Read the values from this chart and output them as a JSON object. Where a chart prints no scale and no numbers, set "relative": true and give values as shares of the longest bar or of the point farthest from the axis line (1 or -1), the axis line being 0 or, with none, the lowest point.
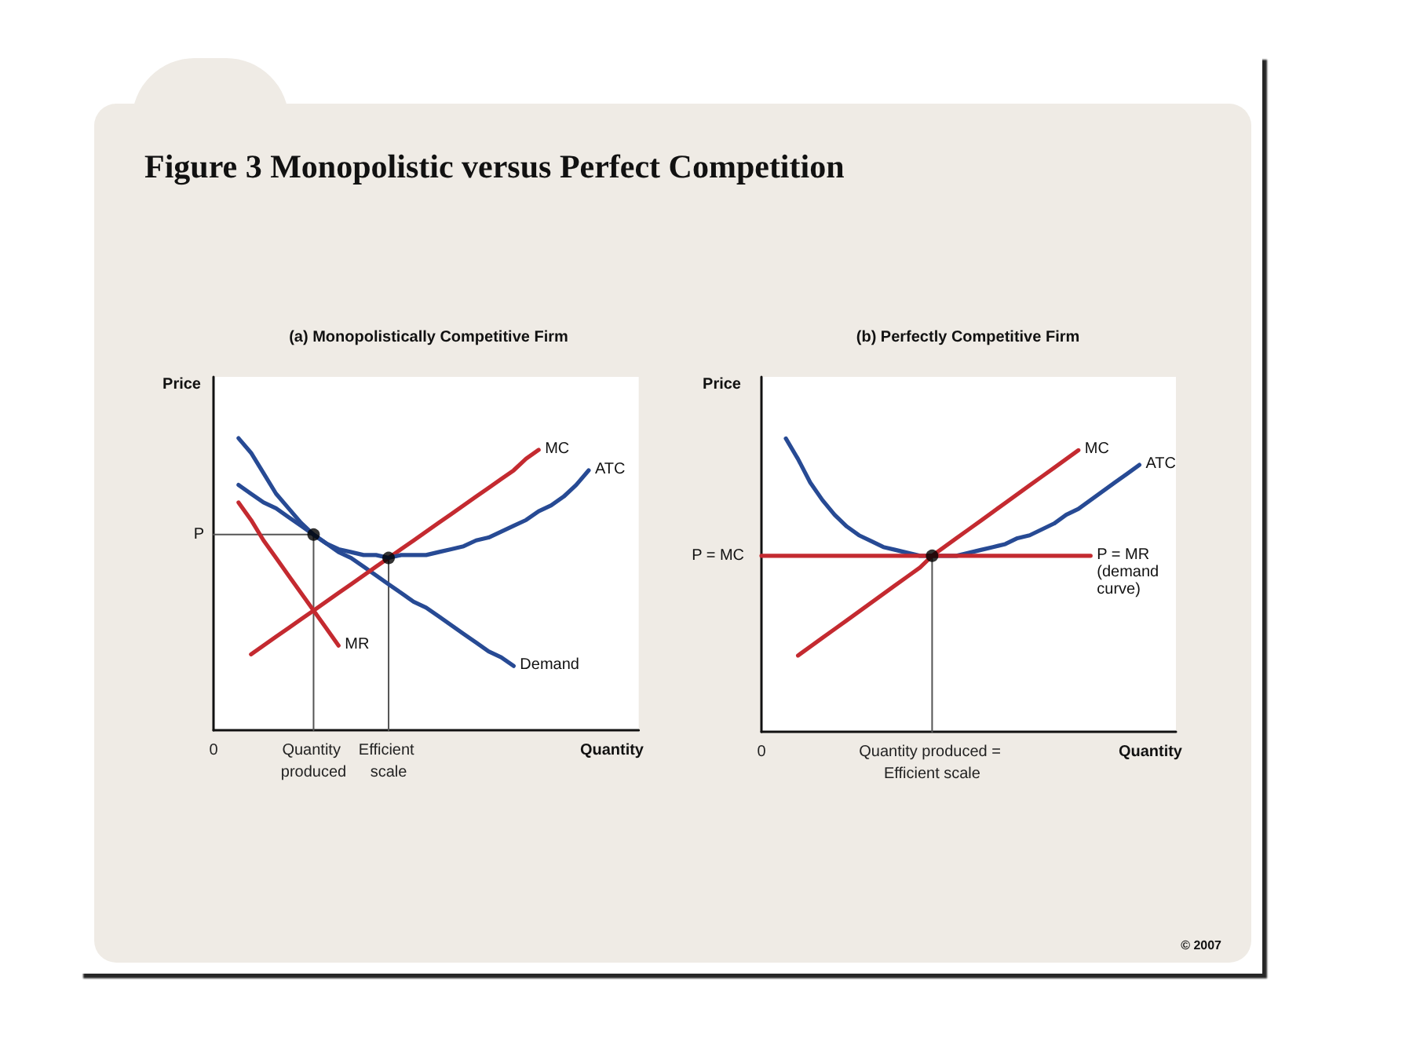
{
  "chart_data": [
    {
      "type": "line",
      "title": "Figure 3 Monopolistic versus Perfect Competition",
      "subtitle": "(a) Monopolistically Competitive Firm",
      "xlabel": "Quantity",
      "ylabel": "Price",
      "relative": true,
      "categories": [
        "0",
        null,
        null,
        null,
        null,
        null,
        null,
        null,
        "Quantity produced",
        null,
        null,
        null,
        null,
        null,
        "Efficient scale",
        null,
        null,
        null,
        null,
        null,
        null,
        null,
        null,
        null,
        null,
        null,
        null,
        null,
        null,
        null,
        null,
        null,
        null,
        null,
        null
      ],
      "series": [
        {
          "name": "Demand",
          "color": "#274a94",
          "values": [
            null,
            null,
            0.84,
            0.81,
            0.78,
            0.76,
            0.73,
            0.7,
            0.67,
            0.64,
            0.61,
            0.59,
            0.56,
            0.53,
            0.5,
            0.47,
            0.44,
            0.42,
            0.39,
            0.36,
            0.33,
            0.3,
            0.27,
            0.25,
            0.22,
            null,
            null,
            null,
            null,
            null,
            null,
            null,
            null,
            null,
            null
          ]
        },
        {
          "name": "MR",
          "color": "#c42a30",
          "values": [
            null,
            null,
            0.78,
            0.72,
            0.65,
            0.59,
            0.53,
            0.47,
            0.41,
            0.35,
            0.29,
            null,
            null,
            null,
            null,
            null,
            null,
            null,
            null,
            null,
            null,
            null,
            null,
            null,
            null,
            null,
            null,
            null,
            null,
            null,
            null,
            null,
            null,
            null,
            null
          ]
        },
        {
          "name": "MC",
          "color": "#c42a30",
          "values": [
            null,
            null,
            null,
            0.26,
            0.29,
            0.32,
            0.35,
            0.38,
            0.41,
            0.44,
            0.47,
            0.5,
            0.53,
            0.56,
            0.59,
            0.62,
            0.65,
            0.68,
            0.71,
            0.74,
            0.77,
            0.8,
            0.83,
            0.86,
            0.89,
            0.93,
            0.96,
            null,
            null,
            null,
            null,
            null,
            null,
            null,
            null
          ]
        },
        {
          "name": "ATC",
          "color": "#274a94",
          "values": [
            null,
            null,
            1.0,
            0.95,
            0.88,
            0.81,
            0.76,
            0.71,
            0.67,
            0.64,
            0.62,
            0.61,
            0.6,
            0.6,
            0.59,
            0.6,
            0.6,
            0.6,
            0.61,
            0.62,
            0.63,
            0.65,
            0.66,
            0.68,
            0.7,
            0.72,
            0.75,
            0.77,
            0.8,
            0.84,
            0.89,
            null,
            null,
            null,
            null
          ]
        },
        {
          "color": "#555555",
          "x": [
            "0",
            "Quantity produced",
            "Quantity produced"
          ],
          "values": [
            0.67,
            0.67,
            0
          ]
        },
        {
          "color": "#555555",
          "x": [
            "Efficient scale",
            "Efficient scale"
          ],
          "values": [
            0.59,
            0
          ]
        },
        {
          "type": "scatter",
          "marker": "circle",
          "color": "#000000",
          "x": [
            "Quantity produced",
            "Efficient scale"
          ],
          "values": [
            0.67,
            0.59
          ]
        }
      ],
      "annotations": [
        {
          "text": "P",
          "x": "0",
          "y": 0.67
        }
      ]
    },
    {
      "type": "line",
      "subtitle": "(b) Perfectly Competitive Firm",
      "xlabel": "Quantity",
      "ylabel": "Price",
      "relative": true,
      "categories": [
        "0",
        null,
        null,
        null,
        null,
        null,
        null,
        null,
        null,
        null,
        null,
        null,
        null,
        null,
        "Quantity produced = Efficient scale",
        null,
        null,
        null,
        null,
        null,
        null,
        null,
        null,
        null,
        null,
        null,
        null,
        null,
        null,
        null,
        null,
        null,
        null,
        null,
        null
      ],
      "series": [
        {
          "name": "MC",
          "color": "#c42a30",
          "values": [
            null,
            null,
            null,
            0.26,
            0.29,
            0.32,
            0.35,
            0.38,
            0.41,
            0.44,
            0.47,
            0.5,
            0.53,
            0.56,
            0.6,
            0.63,
            0.66,
            0.69,
            0.72,
            0.75,
            0.78,
            0.81,
            0.84,
            0.87,
            0.9,
            0.93,
            0.96,
            null,
            null,
            null,
            null,
            null,
            null,
            null,
            null
          ]
        },
        {
          "name": "ATC",
          "color": "#274a94",
          "values": [
            null,
            null,
            1.0,
            0.93,
            0.85,
            0.79,
            0.74,
            0.7,
            0.67,
            0.65,
            0.63,
            0.62,
            0.61,
            0.6,
            0.6,
            0.6,
            0.6,
            0.61,
            0.62,
            0.63,
            0.64,
            0.66,
            0.67,
            0.69,
            0.71,
            0.74,
            0.76,
            0.79,
            0.82,
            0.85,
            0.88,
            0.91,
            null,
            null,
            null
          ]
        },
        {
          "name": "P = MR (demand curve)",
          "color": "#c42a30",
          "values": [
            0.6,
            0.6,
            0.6,
            0.6,
            0.6,
            0.6,
            0.6,
            0.6,
            0.6,
            0.6,
            0.6,
            0.6,
            0.6,
            0.6,
            0.6,
            0.6,
            0.6,
            0.6,
            0.6,
            0.6,
            0.6,
            0.6,
            0.6,
            0.6,
            0.6,
            0.6,
            0.6,
            0.6,
            null,
            null,
            null,
            null,
            null,
            null,
            null
          ]
        },
        {
          "color": "#555555",
          "x": [
            "Quantity produced = Efficient scale",
            "Quantity produced = Efficient scale"
          ],
          "values": [
            0.6,
            0
          ]
        },
        {
          "type": "scatter",
          "marker": "circle",
          "color": "#000000",
          "x": [
            "Quantity produced = Efficient scale"
          ],
          "values": [
            0.6
          ]
        }
      ],
      "annotations": [
        {
          "text": "P = MC",
          "x": "0",
          "y": 0.6
        },
        "© 2007"
      ]
    }
  ]
}
